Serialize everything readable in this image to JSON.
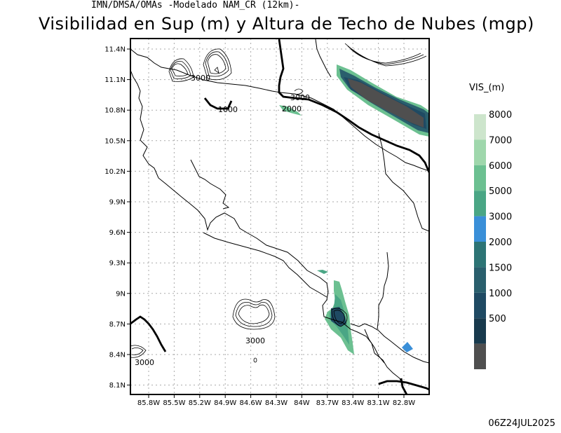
{
  "header": {
    "subtitle": "IMN/DMSA/OMAs -Modelado NAM_CR (12km)-",
    "title": "Visibilidad en Sup (m) y Altura de Techo de Nubes (mgp)",
    "timestamp": "06Z24JUL2025"
  },
  "map": {
    "lat_labels": [
      "11.4N",
      "11.1N",
      "10.8N",
      "10.5N",
      "10.2N",
      "9.9N",
      "9.6N",
      "9.3N",
      "9N",
      "8.7N",
      "8.4N",
      "8.1N"
    ],
    "lon_labels": [
      "85.8W",
      "85.5W",
      "85.2W",
      "84.9W",
      "84.6W",
      "84.3W",
      "84W",
      "83.7W",
      "83.4W",
      "83.1W",
      "82.8W"
    ],
    "contour_labels": [
      "3000",
      "1000",
      "3000",
      "2000",
      "3000",
      "3000"
    ]
  },
  "legend": {
    "title": "VIS_(m)",
    "items": [
      {
        "label": "8000",
        "color": "#cde5cc"
      },
      {
        "label": "7000",
        "color": "#9fd7ac"
      },
      {
        "label": "6000",
        "color": "#6cc091"
      },
      {
        "label": "5000",
        "color": "#4aa685"
      },
      {
        "label": "3000",
        "color": "#3a8fd8"
      },
      {
        "label": "2000",
        "color": "#2d7475"
      },
      {
        "label": "1500",
        "color": "#2a5f6d"
      },
      {
        "label": "1000",
        "color": "#1f4a63"
      },
      {
        "label": "500",
        "color": "#183a4d"
      },
      {
        "label": "",
        "color": "#4f4f4f"
      }
    ]
  }
}
